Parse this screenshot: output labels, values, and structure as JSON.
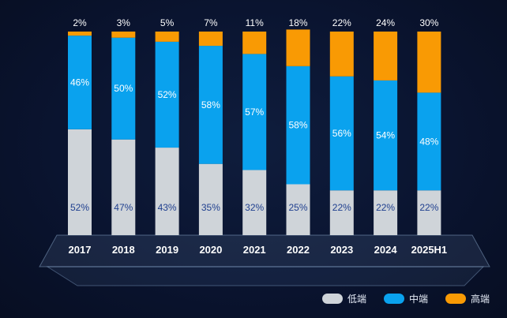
{
  "chart_data": {
    "type": "bar",
    "stacked": true,
    "categories": [
      "2017",
      "2018",
      "2019",
      "2020",
      "2021",
      "2022",
      "2023",
      "2024",
      "2025H1"
    ],
    "series": [
      {
        "name": "低端",
        "color": "#cfd4d9",
        "label_color": "#1f3f8f",
        "values": [
          52,
          47,
          43,
          35,
          32,
          25,
          22,
          22,
          22
        ]
      },
      {
        "name": "中端",
        "color": "#0aa2ee",
        "label_color": "#ffffff",
        "values": [
          46,
          50,
          52,
          58,
          57,
          58,
          56,
          54,
          48
        ]
      },
      {
        "name": "高端",
        "color": "#f99a04",
        "label_color": "#ffffff",
        "values": [
          2,
          3,
          5,
          7,
          11,
          18,
          22,
          24,
          30
        ]
      }
    ],
    "value_suffix": "%",
    "ylim": [
      0,
      100
    ]
  }
}
